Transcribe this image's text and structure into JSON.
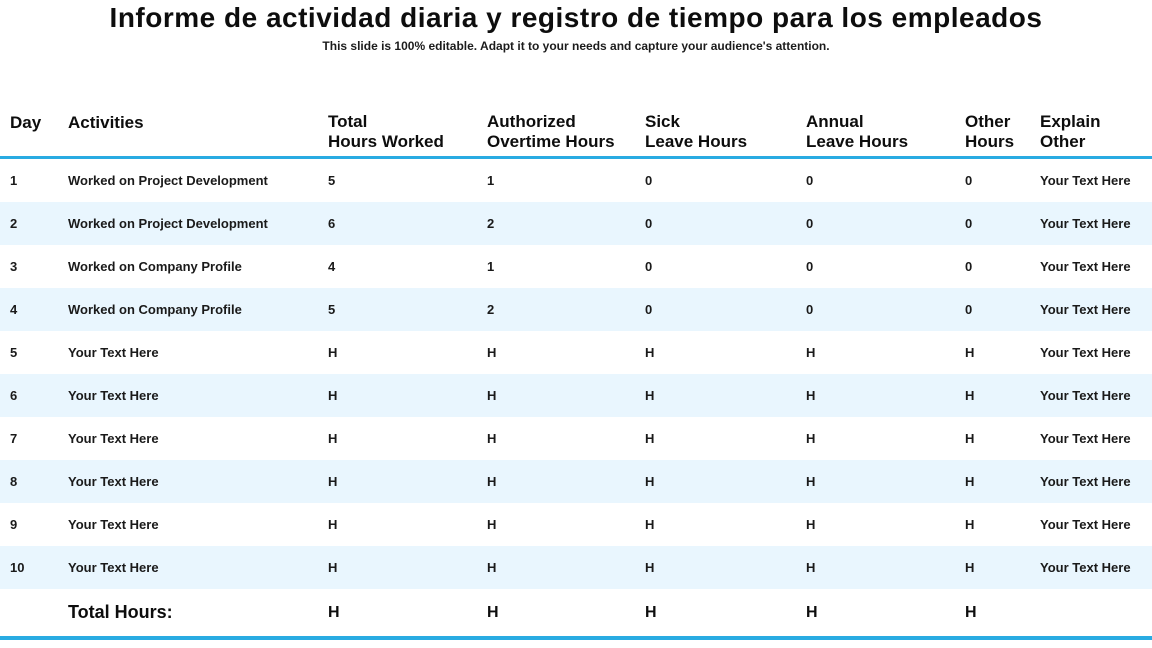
{
  "slide": {
    "title": "Informe de actividad diaria y registro de tiempo para los empleados",
    "subtitle": "This slide is 100% editable. Adapt it to your needs and capture your audience's attention."
  },
  "colors": {
    "accent_line": "#29abe2",
    "row_stripe": "#e9f6fe",
    "text": "#111111"
  },
  "table": {
    "columns": [
      {
        "key": "day",
        "label": "Day"
      },
      {
        "key": "activities",
        "label": "Activities"
      },
      {
        "key": "total",
        "label": "Total\nHours Worked"
      },
      {
        "key": "overtime",
        "label": "Authorized\nOvertime Hours"
      },
      {
        "key": "sick",
        "label": "Sick\nLeave Hours"
      },
      {
        "key": "annual",
        "label": "Annual\nLeave Hours"
      },
      {
        "key": "other",
        "label": "Other\nHours"
      },
      {
        "key": "explain",
        "label": "Explain\nOther"
      }
    ],
    "rows": [
      {
        "day": "1",
        "activities": "Worked on Project Development",
        "total": "5",
        "overtime": "1",
        "sick": "0",
        "annual": "0",
        "other": "0",
        "explain": "Your Text Here"
      },
      {
        "day": "2",
        "activities": "Worked on Project Development",
        "total": "6",
        "overtime": "2",
        "sick": "0",
        "annual": "0",
        "other": "0",
        "explain": "Your Text Here"
      },
      {
        "day": "3",
        "activities": "Worked on Company Profile",
        "total": "4",
        "overtime": "1",
        "sick": "0",
        "annual": "0",
        "other": "0",
        "explain": "Your Text Here"
      },
      {
        "day": "4",
        "activities": "Worked on Company Profile",
        "total": "5",
        "overtime": "2",
        "sick": "0",
        "annual": "0",
        "other": "0",
        "explain": "Your Text Here"
      },
      {
        "day": "5",
        "activities": "Your Text Here",
        "total": "H",
        "overtime": "H",
        "sick": "H",
        "annual": "H",
        "other": "H",
        "explain": "Your Text Here"
      },
      {
        "day": "6",
        "activities": "Your Text Here",
        "total": "H",
        "overtime": "H",
        "sick": "H",
        "annual": "H",
        "other": "H",
        "explain": "Your Text Here"
      },
      {
        "day": "7",
        "activities": "Your Text Here",
        "total": "H",
        "overtime": "H",
        "sick": "H",
        "annual": "H",
        "other": "H",
        "explain": "Your Text Here"
      },
      {
        "day": "8",
        "activities": "Your Text Here",
        "total": "H",
        "overtime": "H",
        "sick": "H",
        "annual": "H",
        "other": "H",
        "explain": "Your Text Here"
      },
      {
        "day": "9",
        "activities": "Your Text Here",
        "total": "H",
        "overtime": "H",
        "sick": "H",
        "annual": "H",
        "other": "H",
        "explain": "Your Text Here"
      },
      {
        "day": "10",
        "activities": "Your Text Here",
        "total": "H",
        "overtime": "H",
        "sick": "H",
        "annual": "H",
        "other": "H",
        "explain": "Your Text Here"
      }
    ],
    "total_row": {
      "label": "Total Hours:",
      "total": "H",
      "overtime": "H",
      "sick": "H",
      "annual": "H",
      "other": "H"
    }
  }
}
